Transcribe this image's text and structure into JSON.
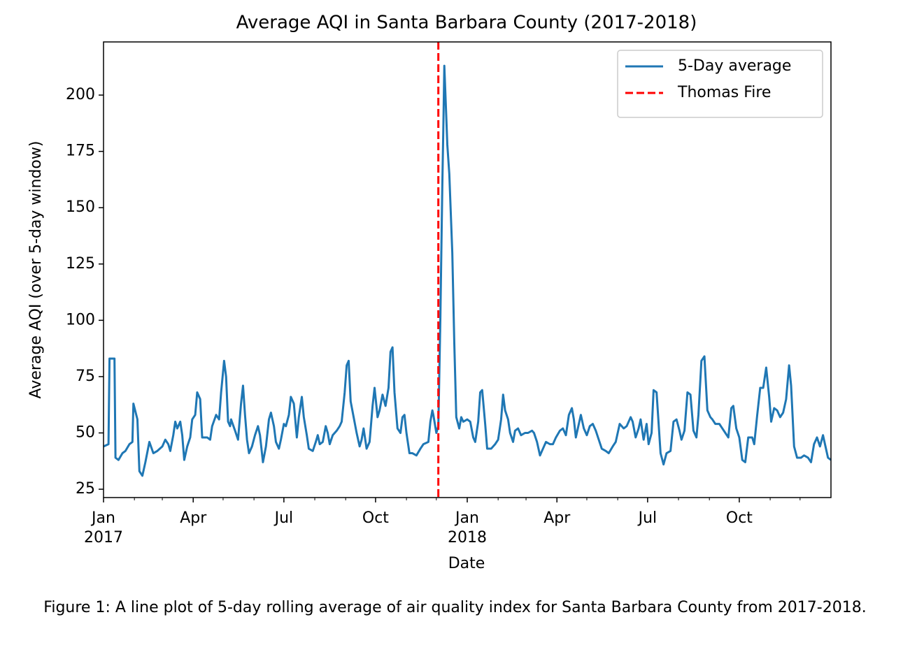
{
  "chart_data": {
    "type": "line",
    "title": "Average AQI in Santa Barbara County (2017-2018)",
    "xlabel": "Date",
    "ylabel": "Average AQI (over 5-day window)",
    "caption": "Figure 1: A line plot of 5-day rolling average of air quality index for Santa Barbara County from 2017-2018.",
    "xlim": [
      0,
      730
    ],
    "xticks": [
      {
        "value": 0,
        "label": "Jan\n2017"
      },
      {
        "value": 90,
        "label": "Apr"
      },
      {
        "value": 181,
        "label": "Jul"
      },
      {
        "value": 273,
        "label": "Oct"
      },
      {
        "value": 365,
        "label": "Jan\n2018"
      },
      {
        "value": 455,
        "label": "Apr"
      },
      {
        "value": 546,
        "label": "Jul"
      },
      {
        "value": 638,
        "label": "Oct"
      }
    ],
    "xminorticks": [
      31,
      59,
      120,
      151,
      212,
      243,
      304,
      334,
      396,
      424,
      485,
      516,
      577,
      608,
      669,
      699
    ],
    "ylim": [
      21.3,
      223.6
    ],
    "yticks": [
      25,
      50,
      75,
      100,
      125,
      150,
      175,
      200
    ],
    "legend": "upper right",
    "series": [
      {
        "name": "5-Day average",
        "color": "#1f77b4",
        "x": [
          0,
          5,
          6,
          11,
          12,
          15,
          19,
          22,
          26,
          29,
          30,
          34,
          36,
          39,
          42,
          46,
          50,
          54,
          59,
          62,
          65,
          67,
          70,
          72,
          74,
          77,
          79,
          81,
          84,
          87,
          89,
          92,
          94,
          97,
          99,
          104,
          107,
          109,
          113,
          116,
          118,
          121,
          123,
          125,
          127,
          128,
          132,
          135,
          138,
          140,
          142,
          144,
          146,
          149,
          152,
          155,
          157,
          160,
          163,
          166,
          168,
          171,
          173,
          176,
          178,
          181,
          183,
          186,
          188,
          191,
          194,
          196,
          199,
          201,
          204,
          206,
          210,
          213,
          215,
          217,
          220,
          223,
          225,
          227,
          230,
          234,
          237,
          239,
          242,
          244,
          246,
          248,
          251,
          254,
          257,
          259,
          261,
          264,
          267,
          270,
          272,
          275,
          277,
          280,
          283,
          286,
          288,
          290,
          292,
          295,
          298,
          300,
          302,
          304,
          307,
          310,
          314,
          318,
          321,
          326,
          328,
          330,
          331,
          334,
          336,
          338,
          340,
          341,
          342,
          344,
          345,
          347,
          350,
          352,
          354,
          357,
          359,
          361,
          365,
          368,
          371,
          373,
          376,
          378,
          380,
          383,
          385,
          389,
          393,
          396,
          399,
          401,
          403,
          406,
          408,
          411,
          413,
          416,
          419,
          423,
          426,
          430,
          432,
          435,
          438,
          441,
          444,
          448,
          451,
          454,
          458,
          461,
          464,
          467,
          470,
          472,
          474,
          477,
          479,
          482,
          485,
          488,
          491,
          494,
          497,
          500,
          504,
          507,
          511,
          514,
          518,
          522,
          525,
          529,
          531,
          534,
          537,
          539,
          542,
          545,
          547,
          550,
          552,
          555,
          559,
          562,
          565,
          569,
          572,
          575,
          578,
          580,
          583,
          586,
          589,
          592,
          595,
          597,
          600,
          603,
          606,
          609,
          611,
          614,
          618,
          621,
          624,
          627,
          630,
          632,
          635,
          638,
          641,
          644,
          647,
          651,
          653,
          656,
          659,
          662,
          665,
          668,
          670,
          673,
          676,
          679,
          682,
          685,
          688,
          690,
          693,
          696,
          700,
          703,
          707,
          710,
          713,
          716,
          719,
          722,
          724,
          727,
          730
        ],
        "values": [
          44,
          45,
          83,
          83,
          39,
          38,
          41,
          42,
          45,
          46,
          63,
          56,
          33,
          31,
          37,
          46,
          41,
          42,
          44,
          47,
          45,
          42,
          49,
          55,
          52,
          55,
          49,
          38,
          44,
          48,
          56,
          58,
          68,
          65,
          48,
          48,
          47,
          53,
          58,
          56,
          68,
          82,
          75,
          55,
          53,
          56,
          51,
          47,
          63,
          71,
          58,
          47,
          41,
          44,
          49,
          53,
          49,
          37,
          44,
          56,
          59,
          53,
          46,
          43,
          47,
          54,
          53,
          58,
          66,
          63,
          48,
          57,
          66,
          57,
          49,
          43,
          42,
          46,
          49,
          45,
          46,
          53,
          50,
          45,
          49,
          51,
          53,
          55,
          68,
          80,
          82,
          64,
          57,
          50,
          44,
          47,
          52,
          43,
          46,
          62,
          70,
          57,
          60,
          67,
          62,
          70,
          86,
          88,
          68,
          52,
          50,
          57,
          58,
          50,
          41,
          41,
          40,
          43,
          45,
          46,
          55,
          60,
          58,
          50,
          53,
          100,
          160,
          185,
          213,
          190,
          178,
          165,
          130,
          90,
          57,
          52,
          57,
          55,
          56,
          55,
          48,
          46,
          55,
          68,
          69,
          54,
          43,
          43,
          45,
          47,
          56,
          67,
          60,
          56,
          50,
          46,
          51,
          52,
          49,
          50,
          50,
          51,
          50,
          46,
          40,
          43,
          46,
          45,
          45,
          48,
          51,
          52,
          49,
          58,
          61,
          56,
          48,
          54,
          58,
          52,
          49,
          53,
          54,
          51,
          47,
          43,
          42,
          41,
          44,
          46,
          54,
          52,
          53,
          57,
          55,
          48,
          52,
          56,
          47,
          54,
          45,
          50,
          69,
          68,
          41,
          36,
          41,
          42,
          55,
          56,
          51,
          47,
          51,
          68,
          67,
          51,
          48,
          58,
          82,
          84,
          60,
          57,
          56,
          54,
          54,
          52,
          50,
          48,
          61,
          62,
          52,
          48,
          38,
          37,
          48,
          48,
          45,
          58,
          70,
          70,
          79,
          66,
          55,
          61,
          60,
          57,
          59,
          65,
          80,
          71,
          44,
          39,
          39,
          40,
          39,
          37,
          45,
          48,
          44,
          49,
          45,
          39,
          38
        ]
      }
    ],
    "vline": {
      "name": "Thomas Fire",
      "x": 336,
      "color": "#ff0000"
    }
  }
}
